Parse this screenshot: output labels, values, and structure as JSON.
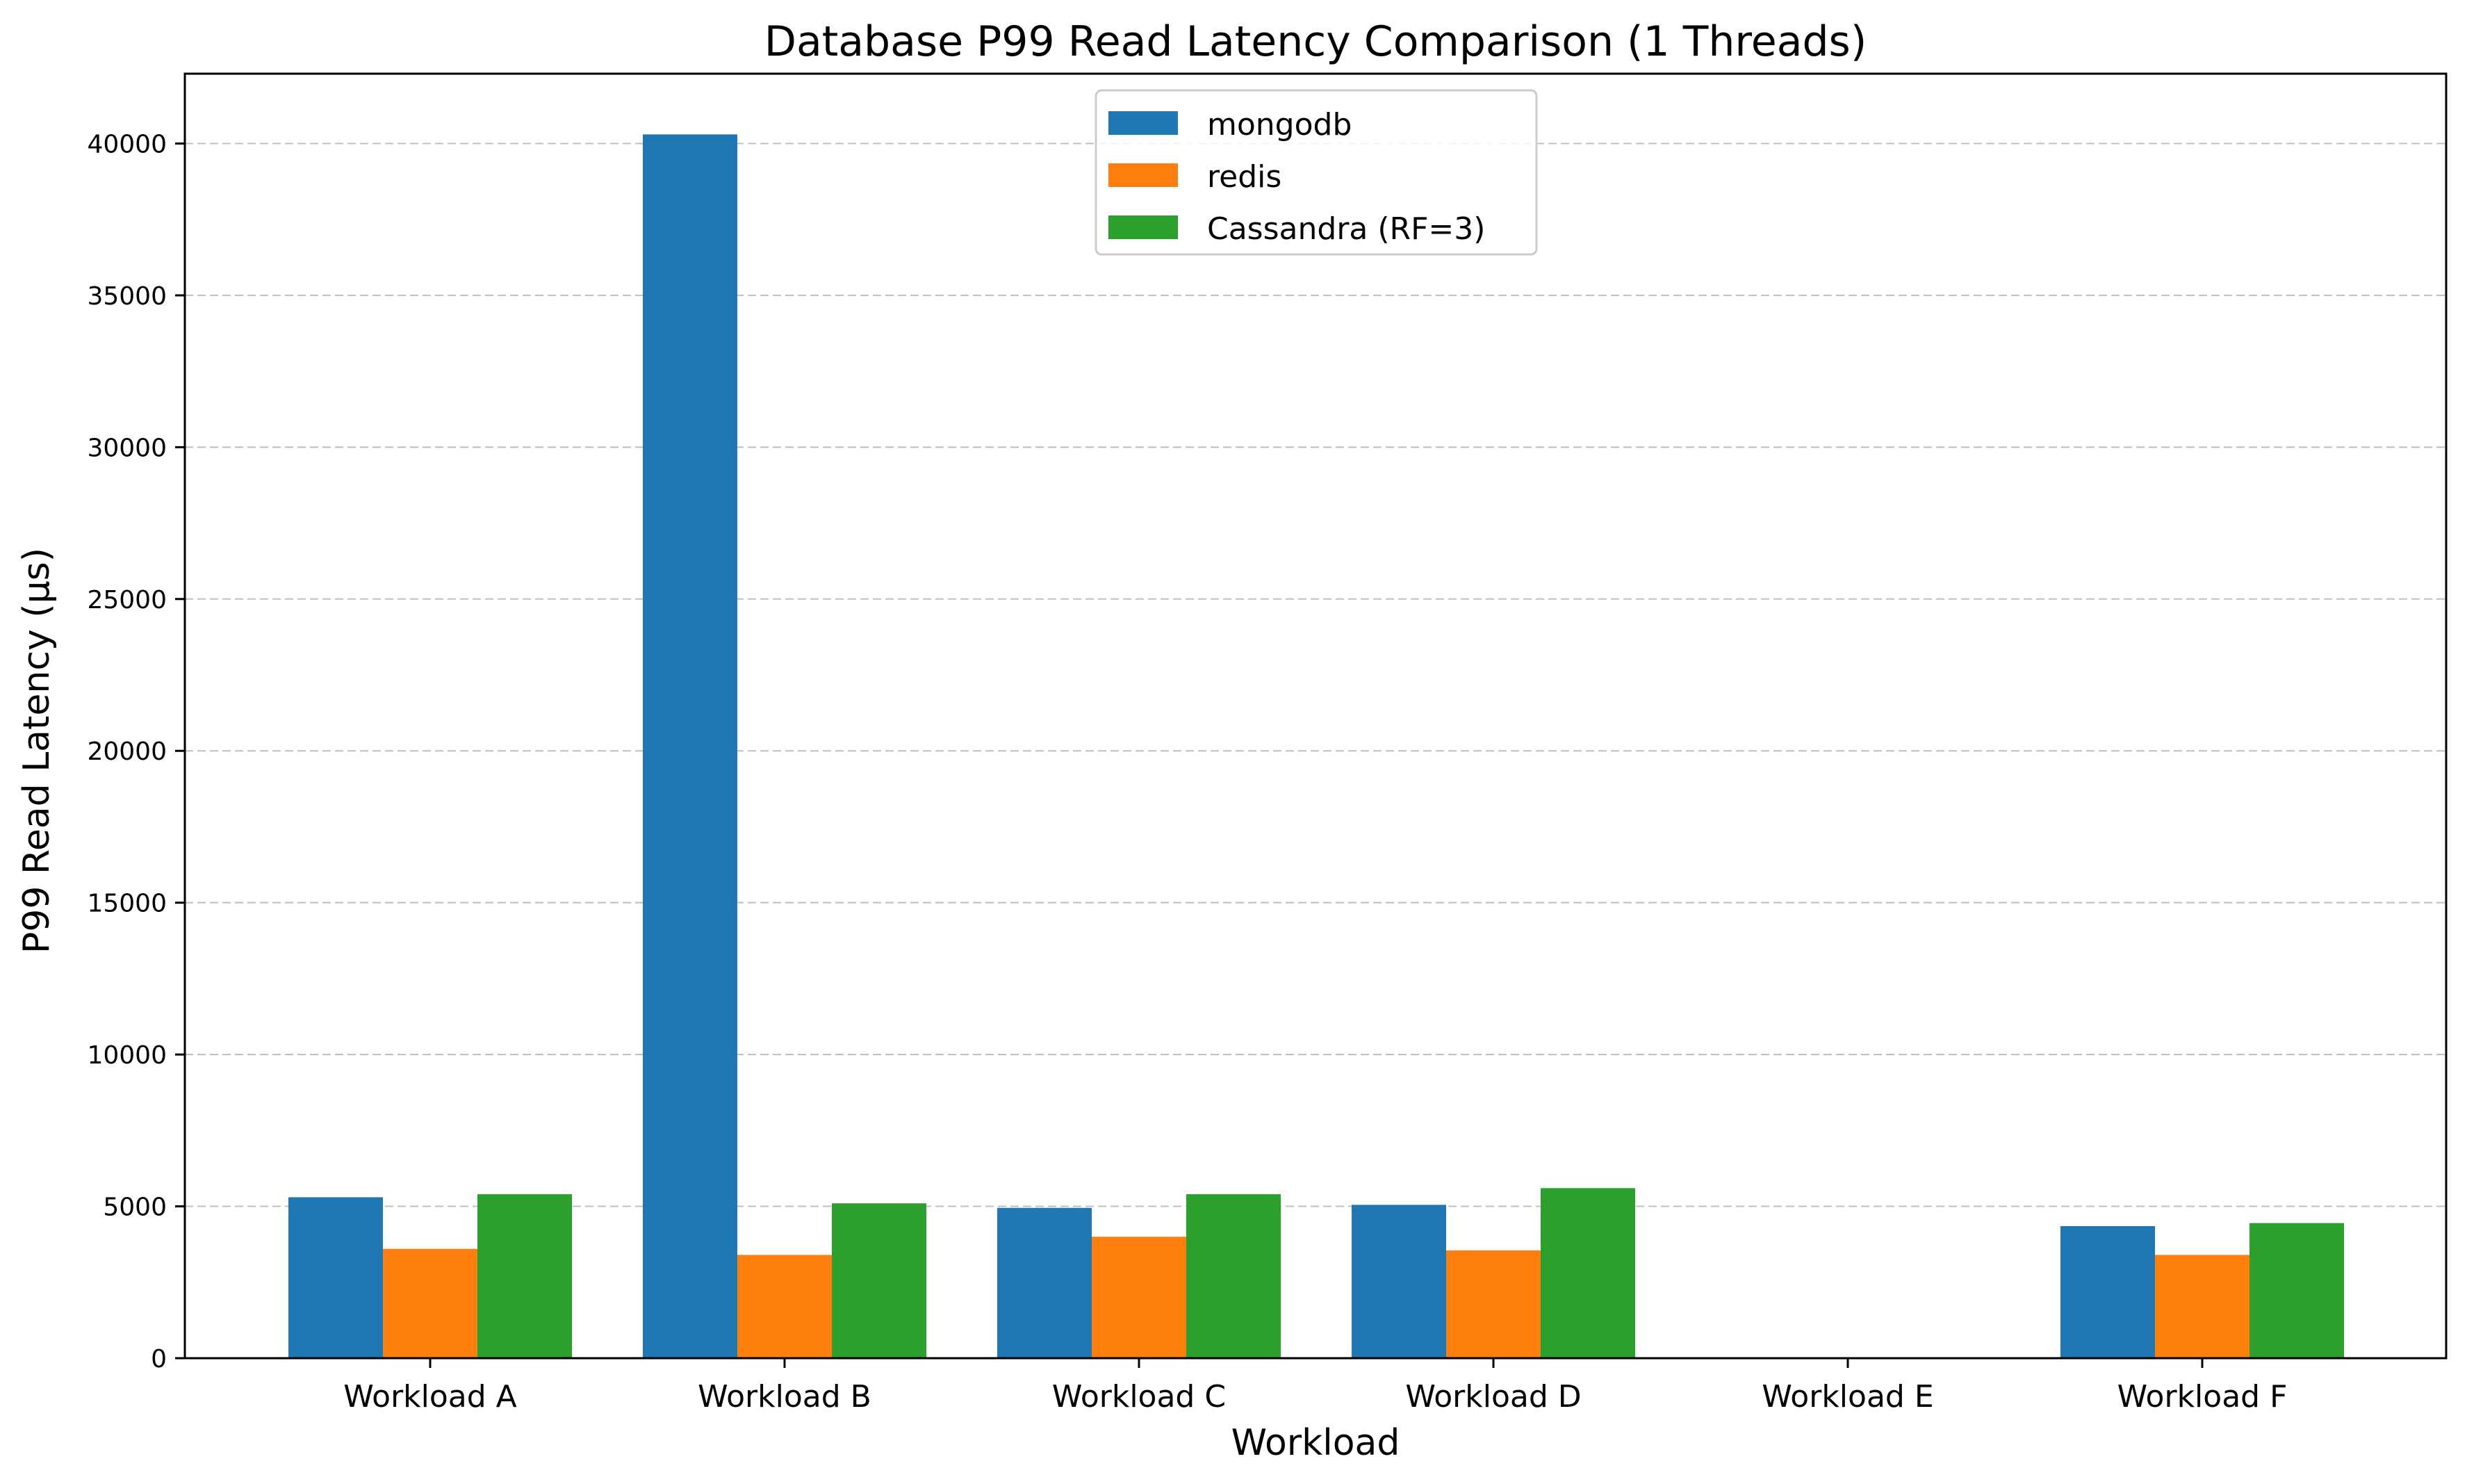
{
  "chart_data": {
    "type": "bar",
    "title": "Database P99 Read Latency Comparison (1 Threads)",
    "xlabel": "Workload",
    "ylabel": "P99 Read Latency (µs)",
    "categories": [
      "Workload A",
      "Workload B",
      "Workload C",
      "Workload D",
      "Workload E",
      "Workload F"
    ],
    "series": [
      {
        "name": "mongodb",
        "color": "#1f77b4",
        "values": [
          5300,
          40300,
          4950,
          5050,
          0,
          4350
        ]
      },
      {
        "name": "redis",
        "color": "#ff7f0e",
        "values": [
          3600,
          3400,
          4000,
          3550,
          0,
          3400
        ]
      },
      {
        "name": "Cassandra (RF=3)",
        "color": "#2ca02c",
        "values": [
          5400,
          5100,
          5400,
          5600,
          0,
          4450
        ]
      }
    ],
    "ylim": [
      0,
      42300
    ],
    "yticks": [
      0,
      5000,
      10000,
      15000,
      20000,
      25000,
      30000,
      35000,
      40000
    ],
    "grid": "y-dashed",
    "legend_position": "top-center"
  }
}
